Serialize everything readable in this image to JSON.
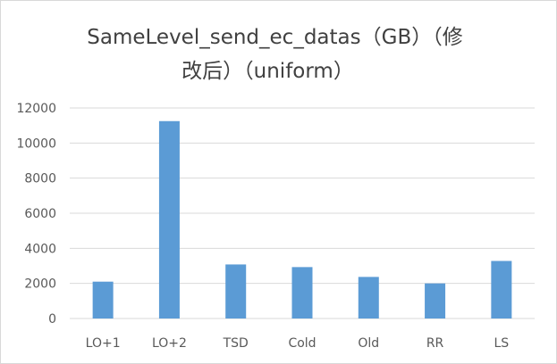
{
  "chart_data": {
    "type": "bar",
    "title_line1": "SameLevel_send_ec_datas（GB）（修",
    "title_line2": "改后）（uniform）",
    "xlabel": "",
    "ylabel": "",
    "categories": [
      "LO+1",
      "LO+2",
      "TSD",
      "Cold",
      "Old",
      "RR",
      "LS"
    ],
    "values": [
      2100,
      11250,
      3080,
      2930,
      2370,
      2000,
      3280
    ],
    "ylim": [
      0,
      12000
    ],
    "yticks": [
      "0",
      "2000",
      "4000",
      "6000",
      "8000",
      "10000",
      "12000"
    ],
    "grid": true,
    "legend": "none",
    "bar_color": "#5b9bd5",
    "grid_color": "#d9d9d9"
  }
}
